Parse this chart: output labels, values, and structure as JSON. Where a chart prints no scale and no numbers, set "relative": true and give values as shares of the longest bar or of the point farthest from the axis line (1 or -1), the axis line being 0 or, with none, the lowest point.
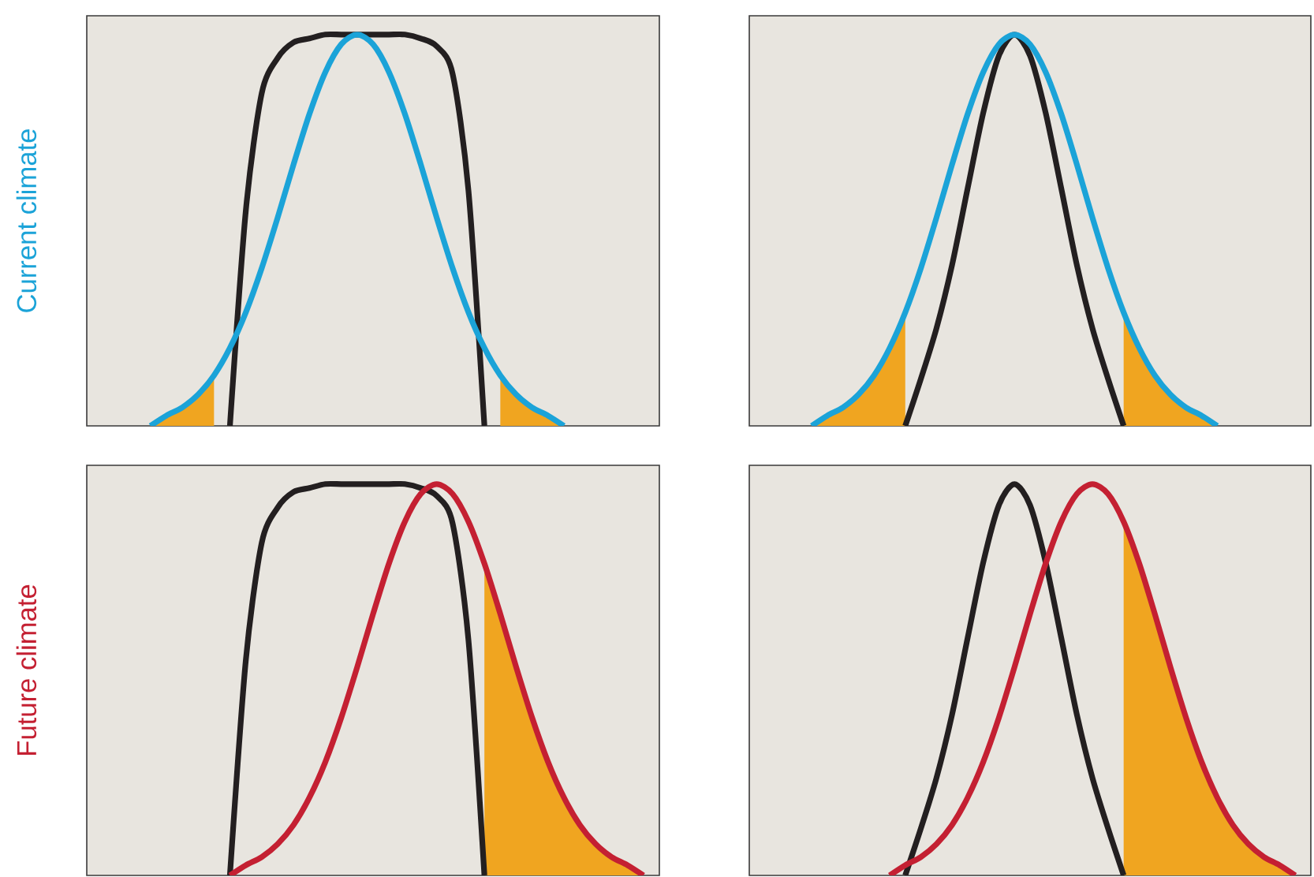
{
  "chart_data": [
    {
      "type": "line",
      "relative": true,
      "ylabel": "Current climate",
      "categories": [
        null,
        null,
        null,
        null,
        null,
        null,
        null,
        null,
        null,
        null,
        null,
        null,
        null,
        null,
        null,
        null,
        null,
        null,
        null,
        null,
        null,
        null,
        null,
        null,
        null,
        null,
        null,
        null,
        null,
        null,
        null,
        null,
        null,
        null,
        null,
        null,
        null
      ],
      "series": [
        {
          "type": "area",
          "color": "#f0a520",
          "values": [
            null,
            null,
            null,
            null,
            0,
            0.026,
            0.047,
            0.08,
            0.129,
            null,
            null,
            null,
            null,
            null,
            null,
            null,
            null,
            null,
            null,
            null,
            null,
            null,
            null,
            null,
            null,
            null,
            null,
            null,
            null,
            null,
            null,
            null,
            null,
            null,
            null,
            null,
            null
          ]
        },
        {
          "type": "area",
          "color": "#f0a520",
          "values": [
            null,
            null,
            null,
            null,
            null,
            null,
            null,
            null,
            null,
            null,
            null,
            null,
            null,
            null,
            null,
            null,
            null,
            null,
            null,
            null,
            null,
            null,
            null,
            null,
            null,
            null,
            0.129,
            0.08,
            0.047,
            0.026,
            0,
            null,
            null,
            null,
            null,
            null,
            null
          ]
        },
        {
          "color": "#231f20",
          "values": [
            null,
            null,
            null,
            null,
            null,
            null,
            null,
            null,
            null,
            0,
            0.55,
            0.85,
            0.94,
            0.98,
            0.99,
            1,
            1,
            1,
            1,
            1,
            1,
            0.99,
            0.97,
            0.9,
            0.6,
            0,
            null,
            null,
            null,
            null,
            null,
            null,
            null,
            null,
            null,
            null,
            null
          ]
        },
        {
          "color": "#1ba3d8",
          "values": [
            null,
            null,
            null,
            null,
            0,
            0.026,
            0.047,
            0.08,
            0.129,
            0.199,
            0.29,
            0.403,
            0.532,
            0.668,
            0.797,
            0.904,
            0.975,
            1,
            0.975,
            0.904,
            0.797,
            0.668,
            0.532,
            0.403,
            0.29,
            0.199,
            0.129,
            0.08,
            0.047,
            0.026,
            0,
            null,
            null,
            null,
            null,
            null,
            null
          ]
        }
      ]
    },
    {
      "type": "line",
      "relative": true,
      "categories": [
        null,
        null,
        null,
        null,
        null,
        null,
        null,
        null,
        null,
        null,
        null,
        null,
        null,
        null,
        null,
        null,
        null,
        null,
        null,
        null,
        null,
        null,
        null,
        null,
        null,
        null,
        null,
        null,
        null,
        null,
        null,
        null,
        null,
        null,
        null,
        null,
        null
      ],
      "series": [
        {
          "type": "area",
          "color": "#f0a520",
          "values": [
            null,
            null,
            null,
            null,
            0,
            0.026,
            0.047,
            0.08,
            0.129,
            0.199,
            0.29,
            null,
            null,
            null,
            null,
            null,
            null,
            null,
            null,
            null,
            null,
            null,
            null,
            null,
            null,
            null,
            null,
            null,
            null,
            null,
            null,
            null,
            null,
            null,
            null,
            null,
            null
          ]
        },
        {
          "type": "area",
          "color": "#f0a520",
          "values": [
            null,
            null,
            null,
            null,
            null,
            null,
            null,
            null,
            null,
            null,
            null,
            null,
            null,
            null,
            null,
            null,
            null,
            null,
            null,
            null,
            null,
            null,
            null,
            null,
            0.29,
            0.199,
            0.129,
            0.08,
            0.047,
            0.026,
            0,
            null,
            null,
            null,
            null,
            null,
            null
          ]
        },
        {
          "color": "#231f20",
          "values": [
            null,
            null,
            null,
            null,
            null,
            null,
            null,
            null,
            null,
            null,
            0,
            0.12,
            0.249,
            0.411,
            0.607,
            0.8,
            0.946,
            1,
            0.946,
            0.8,
            0.607,
            0.411,
            0.249,
            0.12,
            0,
            null,
            null,
            null,
            null,
            null,
            null,
            null,
            null,
            null,
            null,
            null,
            null
          ]
        },
        {
          "color": "#1ba3d8",
          "values": [
            null,
            null,
            null,
            null,
            0,
            0.026,
            0.047,
            0.08,
            0.129,
            0.199,
            0.29,
            0.403,
            0.532,
            0.668,
            0.797,
            0.904,
            0.975,
            1,
            0.975,
            0.904,
            0.797,
            0.668,
            0.532,
            0.403,
            0.29,
            0.199,
            0.129,
            0.08,
            0.047,
            0.026,
            0,
            null,
            null,
            null,
            null,
            null,
            null
          ]
        }
      ]
    },
    {
      "type": "line",
      "relative": true,
      "ylabel": "Future climate",
      "categories": [
        null,
        null,
        null,
        null,
        null,
        null,
        null,
        null,
        null,
        null,
        null,
        null,
        null,
        null,
        null,
        null,
        null,
        null,
        null,
        null,
        null,
        null,
        null,
        null,
        null,
        null,
        null,
        null,
        null,
        null,
        null,
        null,
        null,
        null,
        null,
        null,
        null
      ],
      "series": [
        {
          "type": "area",
          "color": "#f0a520",
          "values": [
            null,
            null,
            null,
            null,
            null,
            null,
            null,
            null,
            null,
            null,
            null,
            null,
            null,
            null,
            null,
            null,
            null,
            null,
            null,
            null,
            null,
            null,
            null,
            null,
            null,
            0.797,
            0.668,
            0.532,
            0.403,
            0.29,
            0.199,
            0.129,
            0.08,
            0.047,
            0.026,
            0,
            null
          ]
        },
        {
          "color": "#231f20",
          "values": [
            null,
            null,
            null,
            null,
            null,
            null,
            null,
            null,
            null,
            0,
            0.55,
            0.85,
            0.94,
            0.98,
            0.99,
            1,
            1,
            1,
            1,
            1,
            1,
            0.99,
            0.97,
            0.9,
            0.6,
            0,
            null,
            null,
            null,
            null,
            null,
            null,
            null,
            null,
            null,
            null,
            null
          ]
        },
        {
          "color": "#c42032",
          "values": [
            null,
            null,
            null,
            null,
            null,
            null,
            null,
            null,
            null,
            0,
            0.026,
            0.047,
            0.08,
            0.129,
            0.199,
            0.29,
            0.403,
            0.532,
            0.668,
            0.797,
            0.904,
            0.975,
            1,
            0.975,
            0.904,
            0.797,
            0.668,
            0.532,
            0.403,
            0.29,
            0.199,
            0.129,
            0.08,
            0.047,
            0.026,
            0,
            null
          ]
        }
      ]
    },
    {
      "type": "line",
      "relative": true,
      "categories": [
        null,
        null,
        null,
        null,
        null,
        null,
        null,
        null,
        null,
        null,
        null,
        null,
        null,
        null,
        null,
        null,
        null,
        null,
        null,
        null,
        null,
        null,
        null,
        null,
        null,
        null,
        null,
        null,
        null,
        null,
        null,
        null,
        null,
        null,
        null,
        null,
        null
      ],
      "series": [
        {
          "type": "area",
          "color": "#f0a520",
          "values": [
            null,
            null,
            null,
            null,
            null,
            null,
            null,
            null,
            null,
            null,
            null,
            null,
            null,
            null,
            null,
            null,
            null,
            null,
            null,
            null,
            null,
            null,
            null,
            null,
            0.904,
            0.797,
            0.668,
            0.532,
            0.403,
            0.29,
            0.199,
            0.129,
            0.08,
            0.047,
            0.026,
            0,
            null
          ]
        },
        {
          "color": "#231f20",
          "values": [
            null,
            null,
            null,
            null,
            null,
            null,
            null,
            null,
            null,
            null,
            0,
            0.12,
            0.249,
            0.411,
            0.607,
            0.8,
            0.946,
            1,
            0.946,
            0.8,
            0.607,
            0.411,
            0.249,
            0.12,
            0,
            null,
            null,
            null,
            null,
            null,
            null,
            null,
            null,
            null,
            null,
            null,
            null
          ]
        },
        {
          "color": "#c42032",
          "values": [
            null,
            null,
            null,
            null,
            null,
            null,
            null,
            null,
            null,
            0,
            0.026,
            0.047,
            0.08,
            0.129,
            0.199,
            0.29,
            0.403,
            0.532,
            0.668,
            0.797,
            0.904,
            0.975,
            1,
            0.975,
            0.904,
            0.797,
            0.668,
            0.532,
            0.403,
            0.29,
            0.199,
            0.129,
            0.08,
            0.047,
            0.026,
            0,
            null
          ]
        }
      ]
    }
  ]
}
